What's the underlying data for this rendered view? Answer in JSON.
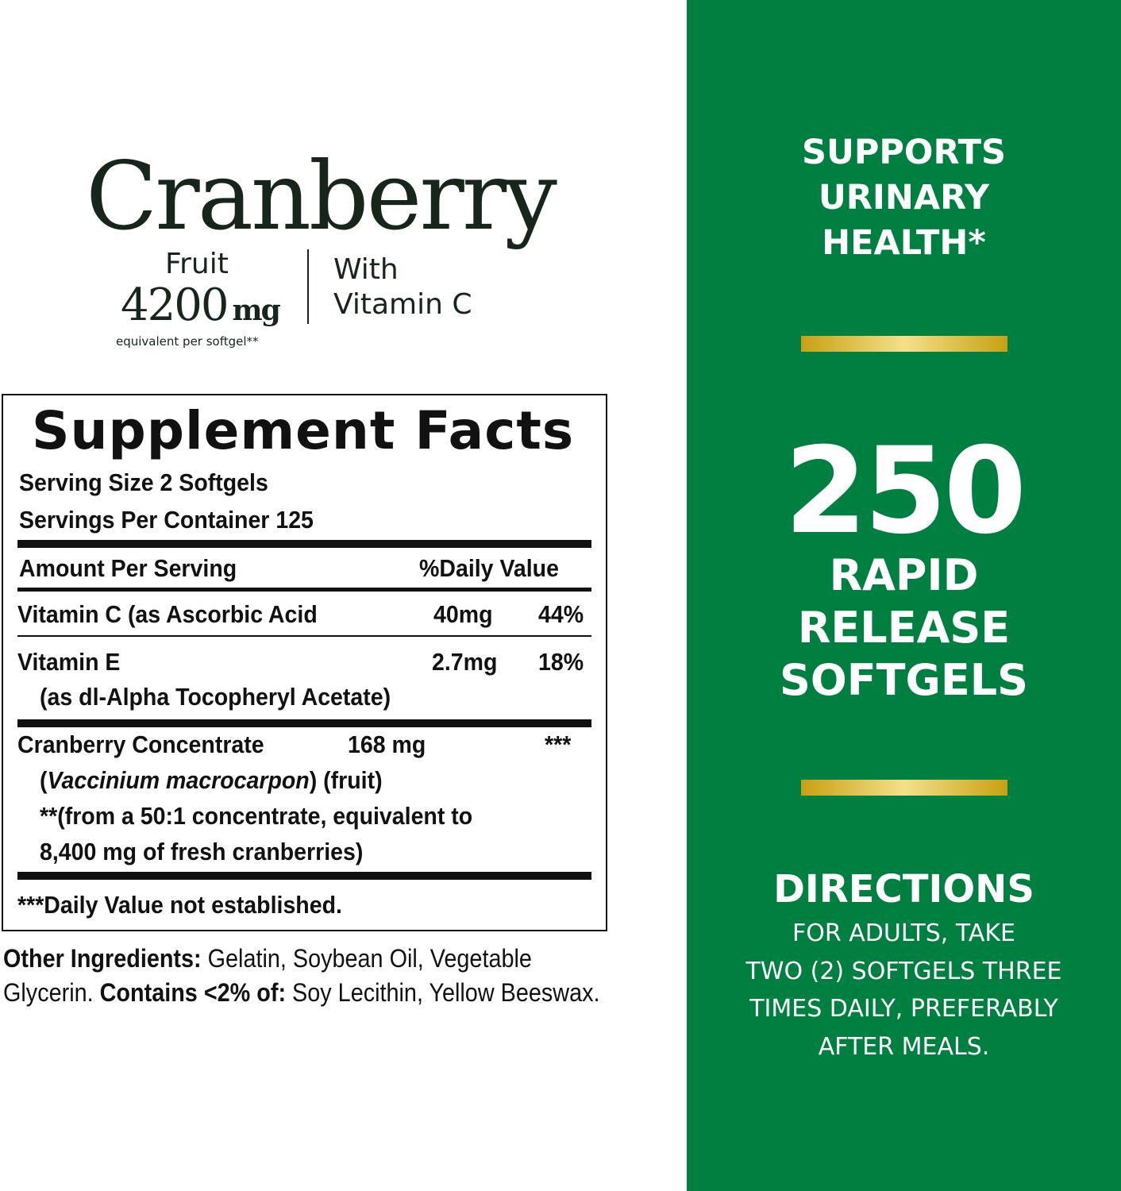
{
  "brand": {
    "title": "Cranberry",
    "fruit_label": "Fruit",
    "amount": "4200",
    "amount_unit": "mg",
    "equivalent_note": "equivalent per softgel**",
    "with_line1": "With",
    "with_line2": "Vitamin C"
  },
  "facts": {
    "title": "Supplement Facts",
    "serving_size": "Serving Size 2 Softgels",
    "servings_per_container": "Servings Per Container 125",
    "header_amount": "Amount Per Serving",
    "header_dv": "%Daily Value",
    "rows": [
      {
        "name": "Vitamin C (as Ascorbic Acid",
        "amount": "40mg",
        "dv": "44%"
      },
      {
        "name": "Vitamin E",
        "sub": "(as dl-Alpha Tocopheryl Acetate)",
        "amount": "2.7mg",
        "dv": "18%"
      },
      {
        "name": "Cranberry Concentrate",
        "amount": "168 mg",
        "dv": "***",
        "sub_open": "(",
        "sub_italic": "Vaccinium macrocarpon",
        "sub_close": ") (fruit)",
        "note1": "**(from a 50:1 concentrate, equivalent to",
        "note2": "8,400 mg of fresh cranberries)"
      }
    ],
    "footnote": "***Daily Value not established."
  },
  "other_ingredients": {
    "label": "Other Ingredients:",
    "text1": " Gelatin, Soybean Oil, Vegetable Glycerin. ",
    "contains_label": "Contains <2% of:",
    "text2": " Soy Lecithin, Yellow Beeswax."
  },
  "panel": {
    "color": "#008040",
    "gold": "#d4b030",
    "claim": [
      "SUPPORTS",
      "URINARY",
      "HEALTH*"
    ],
    "count": "250",
    "count_desc": [
      "RAPID",
      "RELEASE",
      "SOFTGELS"
    ],
    "directions_title": "DIRECTIONS",
    "directions": [
      "FOR ADULTS, TAKE",
      "TWO (2) SOFTGELS THREE",
      "TIMES DAILY, PREFERABLY",
      "AFTER MEALS."
    ]
  }
}
